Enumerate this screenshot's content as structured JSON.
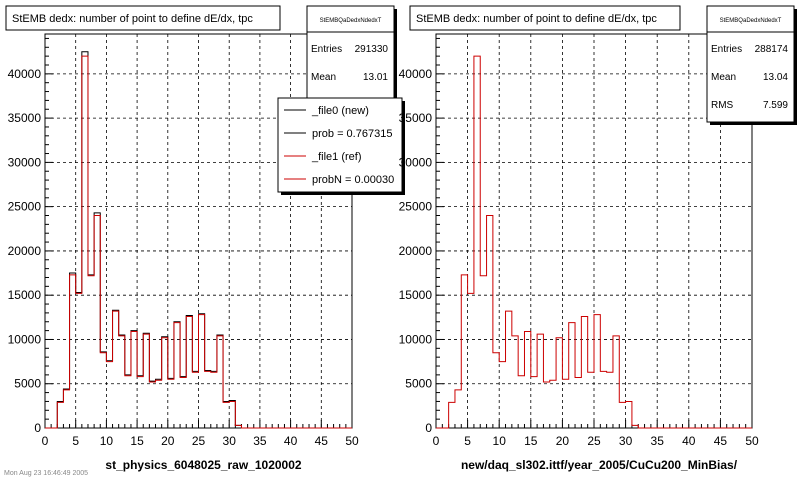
{
  "footer_text": "Mon Aug 23 16:46:49 2005",
  "chart_data": [
    {
      "type": "bar",
      "title": "StEMB dedx: number of point to define dE/dx, tpc",
      "xlabel": "st_physics_6048025_raw_1020002",
      "ylabel": "",
      "xlim": [
        0,
        50
      ],
      "ylim": [
        0,
        44500
      ],
      "xticks": [
        0,
        5,
        10,
        15,
        20,
        25,
        30,
        35,
        40,
        45,
        50
      ],
      "yticks": [
        0,
        5000,
        10000,
        15000,
        20000,
        25000,
        30000,
        35000,
        40000
      ],
      "grid": true,
      "bin_edges": [
        0,
        1,
        2,
        3,
        4,
        5,
        6,
        7,
        8,
        9,
        10,
        11,
        12,
        13,
        14,
        15,
        16,
        17,
        18,
        19,
        20,
        21,
        22,
        23,
        24,
        25,
        26,
        27,
        28,
        29,
        30,
        31,
        32,
        33,
        34,
        35,
        36,
        37,
        38,
        39,
        40,
        41,
        42,
        43,
        44,
        45,
        46,
        47,
        48,
        49,
        50
      ],
      "series": [
        {
          "name": "_file0 (new)",
          "color": "#000000",
          "values": [
            0,
            0,
            3000,
            4400,
            17500,
            15300,
            42500,
            17300,
            24300,
            8600,
            7600,
            13300,
            10500,
            6000,
            11000,
            5900,
            10700,
            5300,
            5500,
            10300,
            5600,
            12000,
            5800,
            12700,
            6400,
            12900,
            6500,
            6400,
            10500,
            3000,
            3100,
            300,
            0,
            0,
            0,
            0,
            0,
            0,
            0,
            0,
            0,
            0,
            0,
            0,
            0,
            0,
            0,
            0,
            0,
            0
          ]
        },
        {
          "name": "_file1 (ref)",
          "color": "#cc0000",
          "values": [
            0,
            0,
            2900,
            4300,
            17300,
            15200,
            42000,
            17200,
            24000,
            8500,
            7500,
            13200,
            10400,
            5900,
            10900,
            5800,
            10600,
            5200,
            5400,
            10200,
            5500,
            11900,
            5700,
            12600,
            6300,
            12800,
            6400,
            6300,
            10400,
            2900,
            3000,
            300,
            0,
            0,
            0,
            0,
            0,
            0,
            0,
            0,
            0,
            0,
            0,
            0,
            0,
            0,
            0,
            0,
            0,
            0
          ]
        }
      ],
      "stats": {
        "name": "StEMBQaDedxNdedxT",
        "entries_label": "Entries",
        "entries": "291330",
        "mean_label": "Mean",
        "mean": "13.01"
      },
      "legend": {
        "entries": [
          "_file0 (new)",
          "prob = 0.767315",
          "_file1 (ref)",
          "probN = 0.00030"
        ]
      }
    },
    {
      "type": "bar",
      "title": "StEMB dedx: number of point to define dE/dx, tpc",
      "xlabel": "new/daq_sl302.ittf/year_2005/CuCu200_MinBias/",
      "ylabel": "",
      "xlim": [
        0,
        50
      ],
      "ylim": [
        0,
        44500
      ],
      "xticks": [
        0,
        5,
        10,
        15,
        20,
        25,
        30,
        35,
        40,
        45,
        50
      ],
      "yticks": [
        0,
        5000,
        10000,
        15000,
        20000,
        25000,
        30000,
        35000,
        40000
      ],
      "grid": true,
      "bin_edges": [
        0,
        1,
        2,
        3,
        4,
        5,
        6,
        7,
        8,
        9,
        10,
        11,
        12,
        13,
        14,
        15,
        16,
        17,
        18,
        19,
        20,
        21,
        22,
        23,
        24,
        25,
        26,
        27,
        28,
        29,
        30,
        31,
        32,
        33,
        34,
        35,
        36,
        37,
        38,
        39,
        40,
        41,
        42,
        43,
        44,
        45,
        46,
        47,
        48,
        49,
        50
      ],
      "series": [
        {
          "name": "",
          "color": "#cc0000",
          "values": [
            0,
            0,
            2900,
            4300,
            17300,
            15200,
            42000,
            17200,
            24000,
            8500,
            7500,
            13200,
            10400,
            5900,
            10900,
            5800,
            10600,
            5200,
            5400,
            10200,
            5500,
            11900,
            5700,
            12600,
            6300,
            12800,
            6400,
            6300,
            10400,
            2900,
            3000,
            300,
            0,
            0,
            0,
            0,
            0,
            0,
            0,
            0,
            0,
            0,
            0,
            0,
            0,
            0,
            0,
            0,
            0,
            0
          ]
        }
      ],
      "stats": {
        "name": "StEMBQaDedxNdedxT",
        "entries_label": "Entries",
        "entries": "288174",
        "mean_label": "Mean",
        "mean": "13.04",
        "rms_label": "RMS",
        "rms": "7.599"
      }
    }
  ]
}
